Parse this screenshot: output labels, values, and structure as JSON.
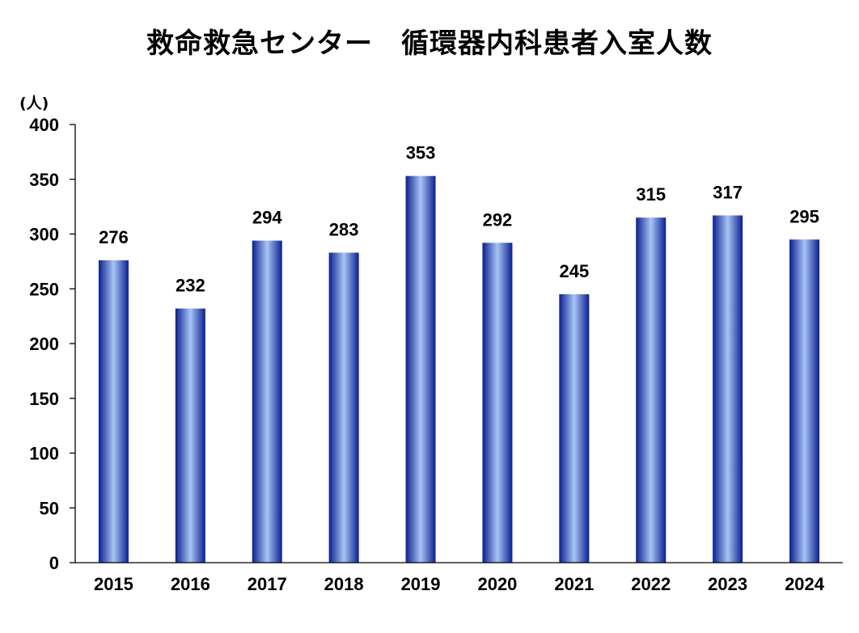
{
  "chart_data": {
    "type": "bar",
    "title": "救命救急センター　循環器内科患者入室人数",
    "ylabel": "(人)",
    "xlabel": "",
    "categories": [
      "2015",
      "2016",
      "2017",
      "2018",
      "2019",
      "2020",
      "2021",
      "2022",
      "2023",
      "2024"
    ],
    "values": [
      276,
      232,
      294,
      283,
      353,
      292,
      245,
      315,
      317,
      295
    ],
    "ylim": [
      0,
      400
    ],
    "yticks": [
      0,
      50,
      100,
      150,
      200,
      250,
      300,
      350,
      400
    ],
    "grid": false,
    "legend": "none",
    "bar_color_dark": "#0a1f8f",
    "bar_color_light": "#a8c4f5"
  }
}
